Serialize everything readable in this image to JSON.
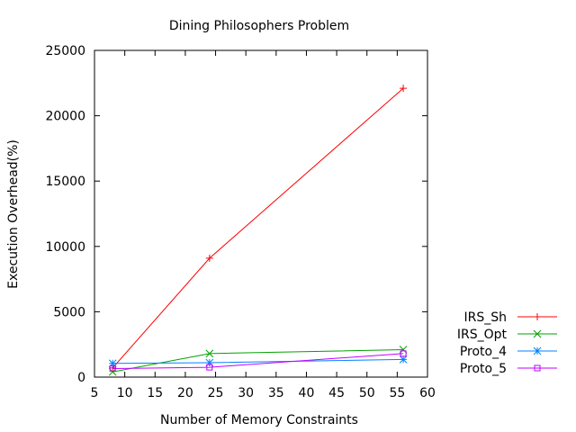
{
  "chart_data": {
    "type": "line",
    "title": "Dining Philosophers Problem",
    "xlabel": "Number of Memory Constraints",
    "ylabel": "Execution Overhead(%)",
    "xlim": [
      5,
      60
    ],
    "ylim": [
      0,
      25000
    ],
    "xticks": [
      5,
      10,
      15,
      20,
      25,
      30,
      35,
      40,
      45,
      50,
      55,
      60
    ],
    "yticks": [
      0,
      5000,
      10000,
      15000,
      20000,
      25000
    ],
    "grid": false,
    "legend_position": "bottom-right outside",
    "x": [
      8,
      24,
      56
    ],
    "series": [
      {
        "name": "IRS_Sh",
        "color": "#ff0000",
        "marker": "plus",
        "values": [
          700,
          9100,
          22100
        ]
      },
      {
        "name": "IRS_Opt",
        "color": "#00a000",
        "marker": "cross",
        "values": [
          400,
          1800,
          2100
        ]
      },
      {
        "name": "Proto_4",
        "color": "#0080ff",
        "marker": "star",
        "values": [
          1050,
          1100,
          1350
        ]
      },
      {
        "name": "Proto_5",
        "color": "#c000ff",
        "marker": "square",
        "values": [
          650,
          750,
          1800
        ]
      }
    ]
  }
}
